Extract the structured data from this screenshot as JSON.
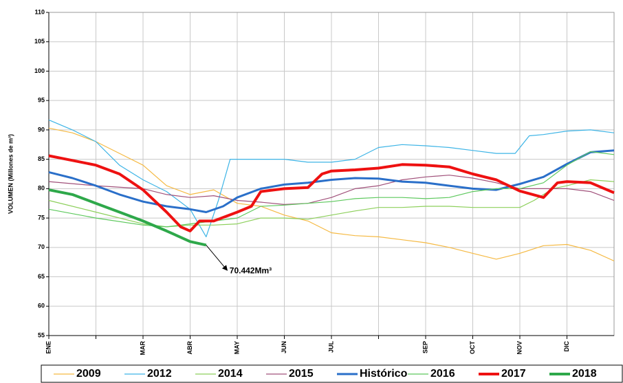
{
  "chart_data": {
    "type": "line",
    "y_label": "VOLUMEN (Millones de m³)",
    "annotation": "70.442Mm³",
    "xlim": [
      0,
      12
    ],
    "ylim": [
      55,
      110
    ],
    "yticks": [
      55,
      60,
      65,
      70,
      75,
      80,
      85,
      90,
      95,
      100,
      105,
      110
    ],
    "xticks": [
      {
        "value": 0,
        "label": "ENE"
      },
      {
        "value": 1,
        "label": null
      },
      {
        "value": 2,
        "label": "MAR"
      },
      {
        "value": 3,
        "label": "ABR"
      },
      {
        "value": 4,
        "label": "MAY"
      },
      {
        "value": 5,
        "label": "JUN"
      },
      {
        "value": 6,
        "label": "JUL"
      },
      {
        "value": 7,
        "label": null
      },
      {
        "value": 8,
        "label": "SEP"
      },
      {
        "value": 9,
        "label": "OCT"
      },
      {
        "value": 10,
        "label": "NOV"
      },
      {
        "value": 11,
        "label": "DIC"
      }
    ],
    "grid": true,
    "series": [
      {
        "name": "2009",
        "color": "#f5b942",
        "width": 1.2,
        "x": [
          0,
          0.5,
          1,
          1.5,
          2,
          2.5,
          3,
          3.5,
          4,
          4.5,
          5,
          5.5,
          6,
          6.5,
          7,
          7.5,
          8,
          8.5,
          9,
          9.5,
          10,
          10.5,
          11,
          11.5,
          12
        ],
        "values": [
          90.3,
          89.5,
          88,
          86,
          84,
          80.5,
          79,
          79.8,
          77.5,
          77,
          75.5,
          74.5,
          72.5,
          72,
          71.8,
          71.3,
          70.8,
          70,
          69,
          68,
          69,
          70.3,
          70.5,
          69.5,
          67.7
        ]
      },
      {
        "name": "2012",
        "color": "#3cb4e6",
        "width": 1.2,
        "x": [
          0,
          0.5,
          1,
          1.5,
          2,
          2.5,
          3,
          3.34,
          3.6,
          3.85,
          4.5,
          5,
          5.5,
          6,
          6.5,
          7,
          7.5,
          8,
          8.5,
          9,
          9.5,
          9.9,
          10.2,
          10.5,
          11,
          11.5,
          12
        ],
        "values": [
          91.7,
          90,
          88,
          84,
          81.5,
          79.5,
          76.5,
          71.8,
          78,
          85,
          85,
          85,
          84.5,
          84.5,
          85,
          87,
          87.5,
          87.3,
          87,
          86.5,
          86,
          86,
          89,
          89.2,
          89.8,
          90,
          89.5
        ]
      },
      {
        "name": "2014",
        "color": "#8ccf5a",
        "width": 1.2,
        "x": [
          0,
          1,
          2,
          2.5,
          3,
          3.5,
          4,
          4.5,
          5,
          5.5,
          6,
          6.5,
          7,
          7.5,
          8,
          8.5,
          9,
          9.5,
          10,
          10.3,
          10.7,
          11,
          11.5,
          12
        ],
        "values": [
          78,
          76,
          74,
          73.5,
          73.8,
          73.8,
          74,
          75,
          75,
          74.8,
          75.5,
          76.2,
          76.8,
          76.8,
          77,
          77,
          76.8,
          76.8,
          76.8,
          78,
          80,
          80.5,
          81.5,
          81.2
        ]
      },
      {
        "name": "2015",
        "color": "#a0507a",
        "width": 1.2,
        "x": [
          0,
          1,
          2,
          2.5,
          3,
          3.5,
          4,
          4.5,
          5,
          5.5,
          6,
          6.5,
          7,
          7.5,
          8,
          8.5,
          9,
          9.5,
          10,
          10.5,
          11,
          11.5,
          12
        ],
        "values": [
          81.2,
          80.5,
          80,
          79,
          78.5,
          78.8,
          78,
          77.7,
          77.3,
          77.5,
          78.5,
          80,
          80.5,
          81.5,
          82,
          82.3,
          81.8,
          81,
          80,
          80,
          80,
          79.5,
          78
        ]
      },
      {
        "name": "Histórico",
        "color": "#2a6fc9",
        "width": 3,
        "x": [
          0,
          0.5,
          1,
          1.5,
          2,
          2.5,
          3,
          3.34,
          3.7,
          4,
          4.5,
          5,
          5.5,
          6,
          6.5,
          7,
          7.5,
          8,
          8.5,
          9,
          9.5,
          10,
          10.5,
          11,
          11.5,
          12
        ],
        "values": [
          82.8,
          81.8,
          80.5,
          79,
          77.8,
          77,
          76.5,
          76,
          77,
          78.5,
          80,
          80.7,
          81,
          81.5,
          81.8,
          81.7,
          81.2,
          81,
          80.5,
          80,
          79.8,
          80.8,
          82,
          84.2,
          86.2,
          86.5
        ]
      },
      {
        "name": "2016",
        "color": "#5cc85c",
        "width": 1.2,
        "x": [
          0,
          1,
          2,
          2.5,
          3,
          3.5,
          4,
          4.5,
          5,
          5.5,
          6,
          6.5,
          7,
          7.5,
          8,
          8.5,
          9,
          9.5,
          10,
          10.5,
          11,
          11.5,
          12
        ],
        "values": [
          76.5,
          75,
          73.8,
          73.5,
          74,
          74.5,
          75,
          77,
          77.2,
          77.5,
          77.8,
          78.3,
          78.5,
          78.5,
          78.3,
          78.5,
          79.5,
          80,
          80,
          81,
          84,
          86.3,
          85.8
        ]
      },
      {
        "name": "2017",
        "color": "#ee1111",
        "width": 4,
        "x": [
          0,
          0.5,
          1,
          1.5,
          2,
          2.5,
          2.8,
          3,
          3.2,
          3.5,
          4,
          4.3,
          4.5,
          5,
          5.5,
          5.8,
          6,
          6.5,
          7,
          7.5,
          8,
          8.5,
          9,
          9.5,
          10,
          10.5,
          10.8,
          11,
          11.5,
          12
        ],
        "values": [
          85.6,
          84.8,
          84,
          82.5,
          79.8,
          76,
          73.5,
          72.8,
          74.5,
          74.5,
          76,
          77,
          79.5,
          80,
          80.2,
          82.5,
          83,
          83.2,
          83.5,
          84.1,
          84,
          83.7,
          82.5,
          81.5,
          79.6,
          78.5,
          81,
          81.2,
          81,
          79.3
        ]
      },
      {
        "name": "2018",
        "color": "#2ea84a",
        "width": 4,
        "x": [
          0,
          0.5,
          1,
          1.5,
          2,
          2.5,
          3,
          3.34
        ],
        "values": [
          79.8,
          79,
          77.5,
          76,
          74.5,
          72.8,
          71,
          70.4
        ]
      }
    ]
  }
}
